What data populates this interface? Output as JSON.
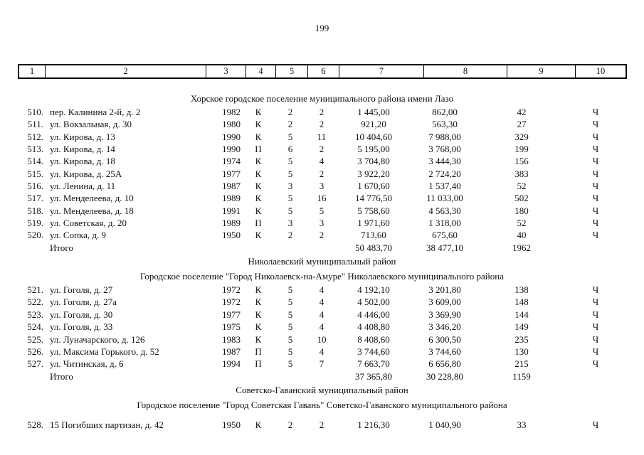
{
  "page": {
    "number": "199"
  },
  "table": {
    "column_headers": [
      "1",
      "2",
      "3",
      "4",
      "5",
      "6",
      "7",
      "8",
      "9",
      "10"
    ]
  },
  "sections": [
    {
      "district": null,
      "settlement": "Хорское городское поселение муниципального района имени Лазо",
      "rows": [
        {
          "num": "510.",
          "address": "пер. Калинина 2-й, д. 2",
          "year": "1982",
          "material": "К",
          "floors": "2",
          "entrances": "2",
          "total_area": "1 445,00",
          "living_area": "862,00",
          "residents": "42",
          "mark": "Ч"
        },
        {
          "num": "511.",
          "address": "ул. Вокзальная, д. 30",
          "year": "1980",
          "material": "К",
          "floors": "2",
          "entrances": "2",
          "total_area": "921,20",
          "living_area": "563,30",
          "residents": "27",
          "mark": "Ч"
        },
        {
          "num": "512.",
          "address": "ул. Кирова, д. 13",
          "year": "1990",
          "material": "К",
          "floors": "5",
          "entrances": "11",
          "total_area": "10 404,60",
          "living_area": "7 988,00",
          "residents": "329",
          "mark": "Ч"
        },
        {
          "num": "513.",
          "address": "ул. Кирова, д. 14",
          "year": "1990",
          "material": "П",
          "floors": "6",
          "entrances": "2",
          "total_area": "5 195,00",
          "living_area": "3 768,00",
          "residents": "199",
          "mark": "Ч"
        },
        {
          "num": "514.",
          "address": "ул. Кирова, д. 18",
          "year": "1974",
          "material": "К",
          "floors": "5",
          "entrances": "4",
          "total_area": "3 704,80",
          "living_area": "3 444,30",
          "residents": "156",
          "mark": "Ч"
        },
        {
          "num": "515.",
          "address": "ул. Кирова, д. 25А",
          "year": "1977",
          "material": "К",
          "floors": "5",
          "entrances": "2",
          "total_area": "3 922,20",
          "living_area": "2 724,20",
          "residents": "383",
          "mark": "Ч"
        },
        {
          "num": "516.",
          "address": "ул. Ленина, д. 11",
          "year": "1987",
          "material": "К",
          "floors": "3",
          "entrances": "3",
          "total_area": "1 670,60",
          "living_area": "1 537,40",
          "residents": "52",
          "mark": "Ч"
        },
        {
          "num": "517.",
          "address": "ул. Менделеева, д. 10",
          "year": "1989",
          "material": "К",
          "floors": "5",
          "entrances": "16",
          "total_area": "14 776,50",
          "living_area": "11 033,00",
          "residents": "502",
          "mark": "Ч"
        },
        {
          "num": "518.",
          "address": "ул. Менделеева, д. 18",
          "year": "1991",
          "material": "К",
          "floors": "5",
          "entrances": "5",
          "total_area": "5 758,60",
          "living_area": "4 563,30",
          "residents": "180",
          "mark": "Ч"
        },
        {
          "num": "519.",
          "address": "ул. Советская, д. 20",
          "year": "1989",
          "material": "П",
          "floors": "3",
          "entrances": "3",
          "total_area": "1 971,60",
          "living_area": "1 318,00",
          "residents": "52",
          "mark": "Ч"
        },
        {
          "num": "520.",
          "address": "ул. Сопка, д. 9",
          "year": "1950",
          "material": "К",
          "floors": "2",
          "entrances": "2",
          "total_area": "713,60",
          "living_area": "675,60",
          "residents": "40",
          "mark": "Ч"
        }
      ],
      "total": {
        "label": "Итого",
        "total_area": "50 483,70",
        "living_area": "38 477,10",
        "residents": "1962"
      }
    },
    {
      "district": "Николаевский муниципальный район",
      "settlement": "Городское поселение \"Город Николаевск-на-Амуре\" Николаевского муниципального района",
      "rows": [
        {
          "num": "521.",
          "address": "ул. Гоголя, д. 27",
          "year": "1972",
          "material": "К",
          "floors": "5",
          "entrances": "4",
          "total_area": "4 192,10",
          "living_area": "3 201,80",
          "residents": "138",
          "mark": "Ч"
        },
        {
          "num": "522.",
          "address": "ул. Гоголя, д. 27а",
          "year": "1972",
          "material": "К",
          "floors": "5",
          "entrances": "4",
          "total_area": "4 502,00",
          "living_area": "3 609,00",
          "residents": "148",
          "mark": "Ч"
        },
        {
          "num": "523.",
          "address": "ул. Гоголя, д. 30",
          "year": "1977",
          "material": "К",
          "floors": "5",
          "entrances": "4",
          "total_area": "4 446,00",
          "living_area": "3 369,90",
          "residents": "144",
          "mark": "Ч"
        },
        {
          "num": "524.",
          "address": "ул. Гоголя, д. 33",
          "year": "1975",
          "material": "К",
          "floors": "5",
          "entrances": "4",
          "total_area": "4 408,80",
          "living_area": "3 346,20",
          "residents": "149",
          "mark": "Ч"
        },
        {
          "num": "525.",
          "address": "ул. Луначарского, д. 126",
          "year": "1983",
          "material": "К",
          "floors": "5",
          "entrances": "10",
          "total_area": "8 408,60",
          "living_area": "6 300,50",
          "residents": "235",
          "mark": "Ч"
        },
        {
          "num": "526.",
          "address": "ул. Максима Горького, д. 52",
          "year": "1987",
          "material": "П",
          "floors": "5",
          "entrances": "4",
          "total_area": "3 744,60",
          "living_area": "3 744,60",
          "residents": "130",
          "mark": "Ч"
        },
        {
          "num": "527.",
          "address": "ул. Читинская, д. 6",
          "year": "1994",
          "material": "П",
          "floors": "5",
          "entrances": "7",
          "total_area": "7 663,70",
          "living_area": "6 656,80",
          "residents": "215",
          "mark": "Ч"
        }
      ],
      "total": {
        "label": "Итого",
        "total_area": "37 365,80",
        "living_area": "30 228,80",
        "residents": "1159"
      }
    },
    {
      "district": "Советско-Гаванский муниципальный район",
      "settlement": "Городское поселение \"Город Советская Гавань\" Советско-Гаванского муниципального района",
      "rows": [
        {
          "num": "528.",
          "address": "15 Погибших партизан, д. 42",
          "year": "1950",
          "material": "К",
          "floors": "2",
          "entrances": "2",
          "total_area": "1 216,30",
          "living_area": "1 040,90",
          "residents": "33",
          "mark": "Ч"
        }
      ],
      "total": null
    }
  ]
}
